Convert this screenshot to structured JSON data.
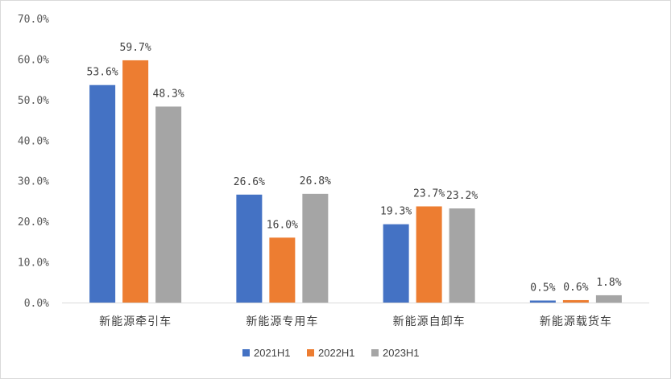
{
  "chart_data": {
    "type": "bar",
    "categories": [
      "新能源牵引车",
      "新能源专用车",
      "新能源自卸车",
      "新能源载货车"
    ],
    "series": [
      {
        "name": "2021H1",
        "color": "#4472c4",
        "values": [
          53.6,
          26.6,
          19.3,
          0.5
        ],
        "labels": [
          "53.6%",
          "26.6%",
          "19.3%",
          "0.5%"
        ]
      },
      {
        "name": "2022H1",
        "color": "#ed7d31",
        "values": [
          59.7,
          16.0,
          23.7,
          0.6
        ],
        "labels": [
          "59.7%",
          "16.0%",
          "23.7%",
          "0.6%"
        ]
      },
      {
        "name": "2023H1",
        "color": "#a5a5a5",
        "values": [
          48.3,
          26.8,
          23.2,
          1.8
        ],
        "labels": [
          "48.3%",
          "26.8%",
          "23.2%",
          "1.8%"
        ]
      }
    ],
    "ylim": [
      0,
      70
    ],
    "yticks": [
      0,
      10,
      20,
      30,
      40,
      50,
      60,
      70
    ],
    "ytick_labels": [
      "0.0%",
      "10.0%",
      "20.0%",
      "30.0%",
      "40.0%",
      "50.0%",
      "60.0%",
      "70.0%"
    ],
    "legend_position": "bottom",
    "grid": false
  }
}
